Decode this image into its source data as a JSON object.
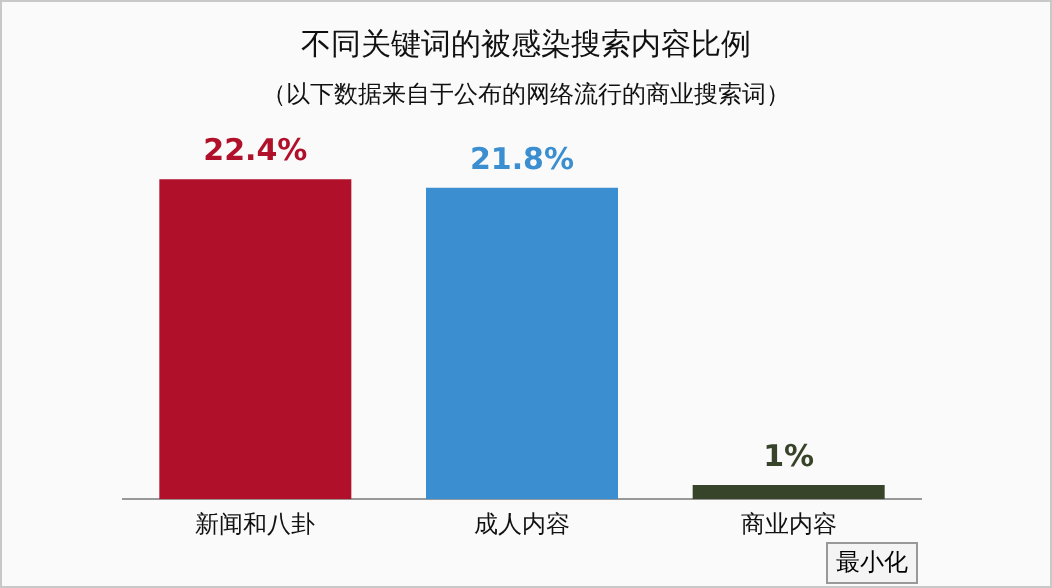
{
  "chart_data": {
    "type": "bar",
    "title": "不同关键词的被感染搜索内容比例",
    "subtitle": "（以下数据来自于公布的网络流行的商业搜索词）",
    "categories": [
      "新闻和八卦",
      "成人内容",
      "商业内容"
    ],
    "values": [
      22.4,
      21.8,
      1
    ],
    "colors": [
      "#b0102a",
      "#3b8fd0",
      "#37442a"
    ],
    "value_labels": [
      "22.4%",
      "21.8%",
      "1%"
    ],
    "annotations": [
      "最小化"
    ],
    "tick_labels": "x",
    "grid": false,
    "legend": false
  }
}
